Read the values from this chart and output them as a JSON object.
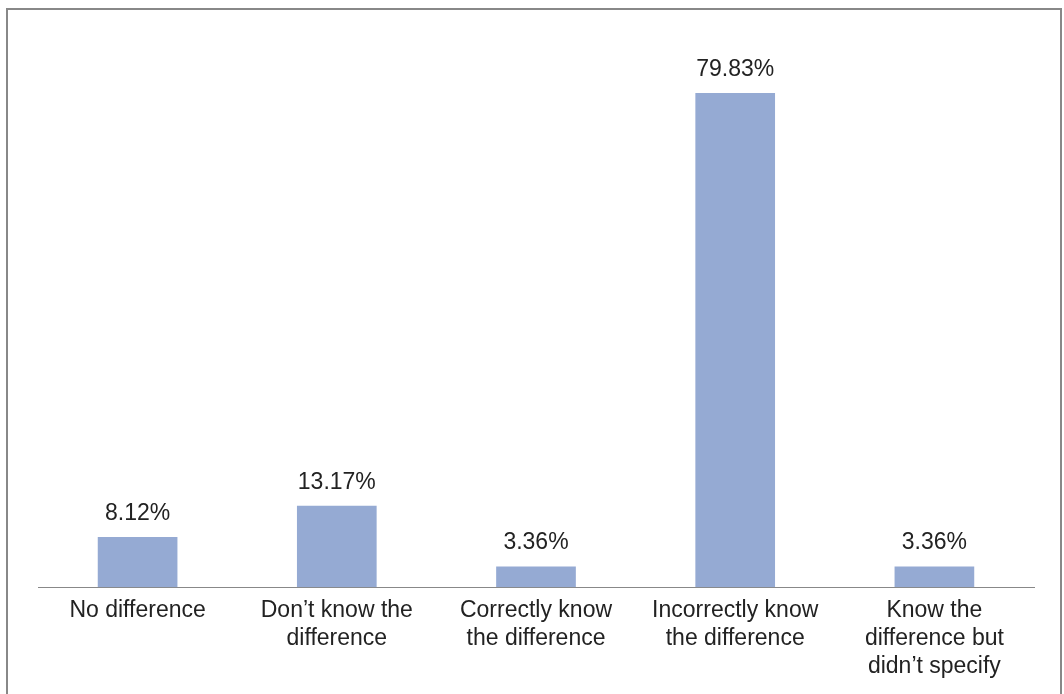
{
  "chart_data": {
    "type": "bar",
    "categories": [
      "No difference",
      "Don’t know the difference",
      "Correctly know the difference",
      "Incorrectly know the difference",
      "Know the difference but didn’t specify"
    ],
    "values": [
      8.12,
      13.17,
      3.36,
      79.83,
      3.36
    ],
    "value_labels": [
      "8.12%",
      "13.17%",
      "3.36%",
      "79.83%",
      "3.36%"
    ],
    "color": "#95aad3",
    "tick_labels": "x",
    "grid": false,
    "legend": false
  }
}
